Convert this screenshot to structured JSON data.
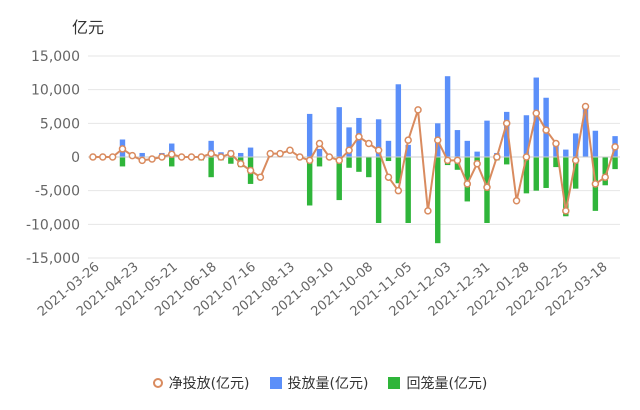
{
  "colors": {
    "net_line": "#d98b5f",
    "injection_bar": "#5b8ff9",
    "withdrawal_bar": "#2fb53a",
    "axis_text": "#666666",
    "grid": "#e6e6e6"
  },
  "chart_data": {
    "type": "bar",
    "unit_label": "亿元",
    "ylim": [
      -15000,
      15000
    ],
    "yticks": [
      -15000,
      -10000,
      -5000,
      0,
      5000,
      10000,
      15000
    ],
    "ytick_labels": [
      "-15,000",
      "-10,000",
      "-5,000",
      "0",
      "5,000",
      "10,000",
      "15,000"
    ],
    "xtick_labels": [
      "2021-03-26",
      "2021-04-23",
      "2021-05-21",
      "2021-06-18",
      "2021-07-16",
      "2021-08-13",
      "2021-09-10",
      "2021-10-08",
      "2021-11-05",
      "2021-12-03",
      "2021-12-31",
      "2022-01-28",
      "2022-02-25",
      "2022-03-18"
    ],
    "legend_placement": "bottom",
    "series": [
      {
        "name": "净投放(亿元)",
        "type": "line",
        "values": [
          0,
          0,
          0,
          1200,
          200,
          -500,
          -300,
          0,
          400,
          0,
          0,
          0,
          500,
          0,
          500,
          -1000,
          -2000,
          -3000,
          500,
          500,
          1000,
          0,
          -500,
          2000,
          0,
          -500,
          1000,
          3000,
          2000,
          1000,
          -3000,
          -5000,
          2500,
          7000,
          -8000,
          2500,
          -500,
          -500,
          -4000,
          -1000,
          -4500,
          0,
          5000,
          -6500,
          0,
          6500,
          4000,
          2000,
          -8000,
          -500,
          7500,
          -4000,
          -3000,
          1500
        ]
      },
      {
        "name": "投放量(亿元)",
        "type": "bar",
        "values": [
          0,
          0,
          0,
          2600,
          0,
          600,
          0,
          600,
          2000,
          0,
          0,
          0,
          2400,
          700,
          1000,
          600,
          1400,
          0,
          600,
          800,
          0,
          0,
          6400,
          1200,
          0,
          7400,
          4400,
          5800,
          0,
          5600,
          2400,
          10800,
          1800,
          0,
          0,
          5000,
          12000,
          4000,
          2400,
          800,
          5400,
          600,
          6700,
          0,
          6200,
          11800,
          8800,
          2000,
          1100,
          3500,
          7600,
          3900,
          0,
          3100
        ]
      },
      {
        "name": "回笼量(亿元)",
        "type": "bar",
        "values": [
          0,
          0,
          0,
          -1400,
          0,
          0,
          0,
          0,
          -1400,
          0,
          0,
          -500,
          -3000,
          -500,
          -1000,
          -1500,
          -4000,
          0,
          0,
          0,
          0,
          0,
          -7200,
          -1400,
          0,
          -6400,
          -1600,
          -2200,
          -3000,
          -9800,
          -600,
          -3900,
          -9800,
          0,
          0,
          -12800,
          -1200,
          -1900,
          -6600,
          -1200,
          -9800,
          -500,
          -1100,
          0,
          -5400,
          -5000,
          -4600,
          -1500,
          -8800,
          -4700,
          0,
          -8000,
          -4200,
          -1800
        ]
      }
    ]
  },
  "legend": {
    "net": "净投放(亿元)",
    "injection": "投放量(亿元)",
    "withdrawal": "回笼量(亿元)"
  }
}
